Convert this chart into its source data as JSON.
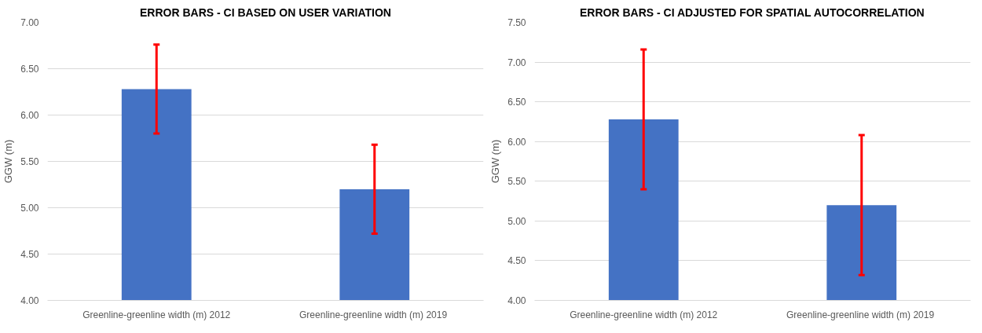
{
  "chart_data": [
    {
      "type": "bar",
      "title": "ERROR BARS - CI BASED ON USER VARIATION",
      "ylabel": "GGW (m)",
      "categories": [
        "Greenline-greenline width (m) 2012",
        "Greenline-greenline width (m)  2019"
      ],
      "series": [
        {
          "color": "#4472c4",
          "values": [
            6.28,
            5.2
          ],
          "errors": [
            0.48,
            0.48
          ]
        }
      ],
      "ylim": [
        4.0,
        7.0
      ],
      "yticks": [
        {
          "value": 4.0,
          "label": "4.00"
        },
        {
          "value": 4.5,
          "label": "4.50"
        },
        {
          "value": 5.0,
          "label": "5.00"
        },
        {
          "value": 5.5,
          "label": "5.50"
        },
        {
          "value": 6.0,
          "label": "6.00"
        },
        {
          "value": 6.5,
          "label": "6.50"
        },
        {
          "value": 7.0,
          "label": "7.00"
        }
      ],
      "grid": "y"
    },
    {
      "type": "bar",
      "title": "ERROR BARS - CI ADJUSTED FOR SPATIAL AUTOCORRELATION",
      "ylabel": "GGW (m)",
      "categories": [
        "Greenline-greenline width (m) 2012",
        "Greenline-greenline width (m)  2019"
      ],
      "series": [
        {
          "color": "#4472c4",
          "values": [
            6.28,
            5.2
          ],
          "errors": [
            0.88,
            0.88
          ]
        }
      ],
      "ylim": [
        4.0,
        7.5
      ],
      "yticks": [
        {
          "value": 4.0,
          "label": "4.00"
        },
        {
          "value": 4.5,
          "label": "4.50"
        },
        {
          "value": 5.0,
          "label": "5.00"
        },
        {
          "value": 5.5,
          "label": "5.50"
        },
        {
          "value": 6.0,
          "label": "6.00"
        },
        {
          "value": 6.5,
          "label": "6.50"
        },
        {
          "value": 7.0,
          "label": "7.00"
        },
        {
          "value": 7.5,
          "label": "7.50"
        }
      ],
      "grid": "y"
    }
  ]
}
